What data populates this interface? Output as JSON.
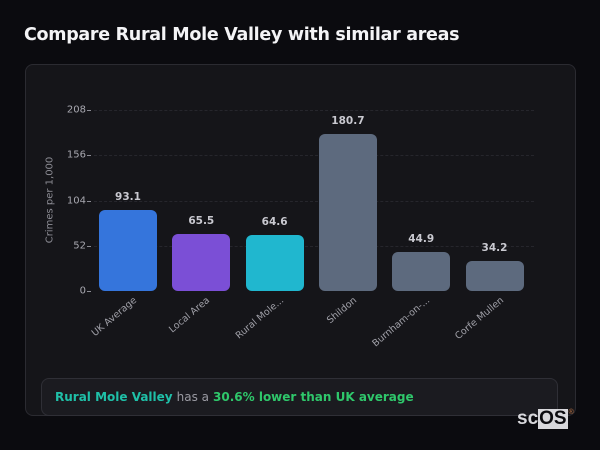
{
  "page": {
    "title": "Compare Rural Mole Valley with similar areas"
  },
  "chart_data": {
    "type": "bar",
    "title": "Compare Rural Mole Valley with similar areas",
    "xlabel": "",
    "ylabel": "Crimes per 1,000",
    "ylim": [
      0,
      208
    ],
    "yticks": [
      0,
      52,
      104,
      156,
      208
    ],
    "grid": true,
    "legend": null,
    "categories": [
      "UK Average",
      "Local Area",
      "Rural Mole...",
      "Shildon",
      "Burnham-on-...",
      "Corfe Mullen"
    ],
    "values": [
      93.1,
      65.5,
      64.6,
      180.7,
      44.9,
      34.2
    ],
    "value_labels": [
      "93.1",
      "65.5",
      "64.6",
      "180.7",
      "44.9",
      "34.2"
    ],
    "colors": [
      "#3575dc",
      "#7b4fd6",
      "#20b7cf",
      "#5d6a7e",
      "#5d6a7e",
      "#5d6a7e"
    ]
  },
  "callout": {
    "area_name": "Rural Mole Valley",
    "connector": "has a",
    "statement": "30.6% lower than UK average",
    "colors": {
      "area": "#1fc0a8",
      "statement": "#2fc76b"
    }
  },
  "logo": {
    "part1": "sc",
    "part2": "OS",
    "mark": "®"
  }
}
